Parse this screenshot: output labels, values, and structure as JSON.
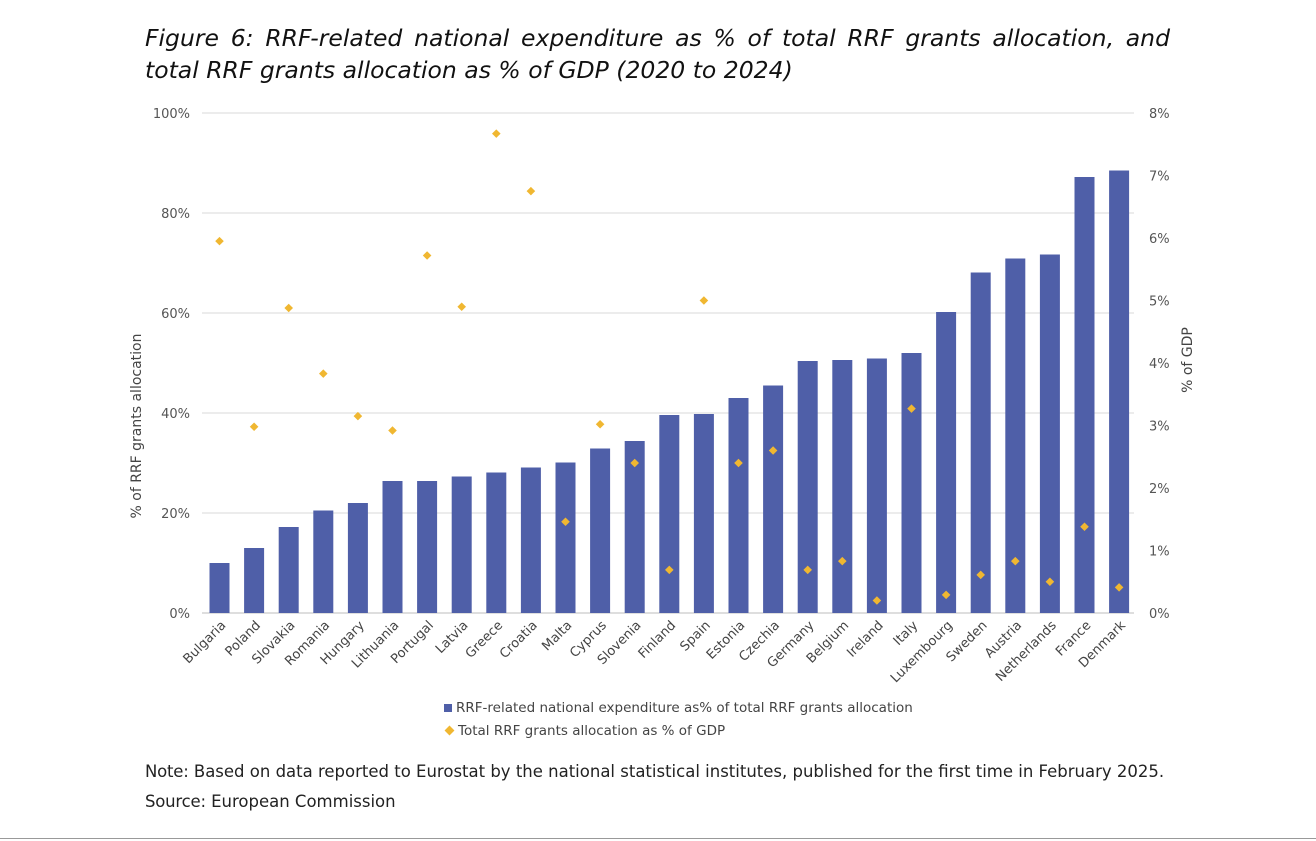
{
  "title": "Figure 6: RRF-related national expenditure as % of total RRF grants allocation, and total RRF grants allocation as % of GDP (2020 to 2024)",
  "chart_data": {
    "type": "bar",
    "categories": [
      "Bulgaria",
      "Poland",
      "Slovakia",
      "Romania",
      "Hungary",
      "Lithuania",
      "Portugal",
      "Latvia",
      "Greece",
      "Croatia",
      "Malta",
      "Cyprus",
      "Slovenia",
      "Finland",
      "Spain",
      "Estonia",
      "Czechia",
      "Germany",
      "Belgium",
      "Ireland",
      "Italy",
      "Luxembourg",
      "Sweden",
      "Austria",
      "Netherlands",
      "France",
      "Denmark"
    ],
    "series": [
      {
        "name": "RRF-related national expenditure as% of total RRF grants allocation",
        "type": "bar",
        "axis": "left",
        "color": "#4f5fa8",
        "values": [
          10,
          13,
          17.2,
          20.5,
          22,
          26.4,
          26.4,
          27.3,
          28.1,
          29.1,
          30.1,
          32.9,
          34.4,
          39.6,
          39.8,
          43,
          45.5,
          50.4,
          50.6,
          50.9,
          52,
          60.2,
          68.1,
          70.9,
          71.7,
          87.2,
          88.5
        ]
      },
      {
        "name": "Total RRF grants allocation as % of GDP",
        "type": "scatter",
        "axis": "right",
        "color": "#f0b731",
        "values": [
          5.95,
          2.98,
          4.88,
          3.83,
          3.15,
          2.92,
          5.72,
          4.9,
          7.67,
          6.75,
          1.46,
          3.02,
          2.4,
          0.69,
          5.0,
          2.4,
          2.6,
          0.69,
          0.83,
          0.2,
          3.27,
          0.29,
          0.61,
          0.83,
          0.5,
          1.38,
          0.41
        ]
      }
    ],
    "yleft": {
      "label": "% of RRF grants allocation",
      "lim": [
        0,
        100
      ],
      "ticks": [
        "0%",
        "20%",
        "40%",
        "60%",
        "80%",
        "100%"
      ]
    },
    "yright": {
      "label": "% of GDP",
      "lim": [
        0,
        8
      ],
      "ticks": [
        "0%",
        "1%",
        "2%",
        "3%",
        "4%",
        "5%",
        "6%",
        "7%",
        "8%"
      ]
    },
    "grid": true,
    "legend_position": "bottom"
  },
  "note": {
    "label": "Note:",
    "text": " Based on data reported to Eurostat by the national statistical institutes, published for the first time in February 2025."
  },
  "source": {
    "label": "Source:",
    "text": " European Commission"
  }
}
